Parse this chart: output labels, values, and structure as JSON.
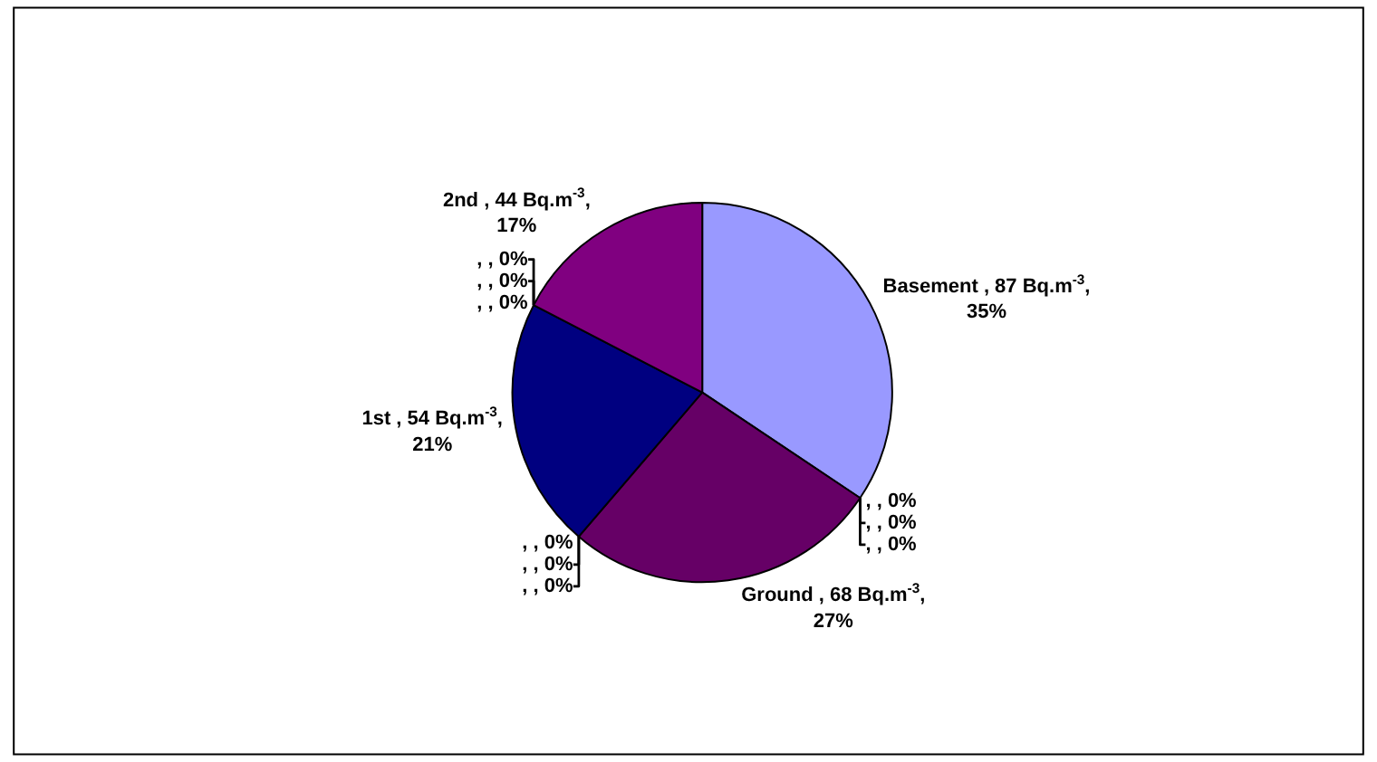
{
  "chart_data": {
    "type": "pie",
    "categories": [
      "Basement , 87 Bq.m$^{-3}$, 35%",
      ", , 0%",
      ", , 0%",
      ", , 0%",
      "Ground , 68 Bq.m$^{-3}$, 27%",
      ", , 0%",
      ", , 0%",
      ", , 0%",
      "1st , 54 Bq.m$^{-3}$, 21%",
      ", , 0%",
      ", , 0%",
      ", , 0%",
      "2nd , 44 Bq.m$^{-3}$, 17%"
    ],
    "values": [
      87,
      0,
      0,
      0,
      68,
      0,
      0,
      0,
      54,
      0,
      0,
      0,
      44
    ],
    "colors": [
      "#9999ff",
      "#993366",
      "#ffffcc",
      "#ccffff",
      "#660066",
      "#ff8080",
      "#0066cc",
      "#ccccff",
      "#000080",
      "#ff00ff",
      "#ffff00",
      "#00ffff",
      "#800080"
    ]
  }
}
